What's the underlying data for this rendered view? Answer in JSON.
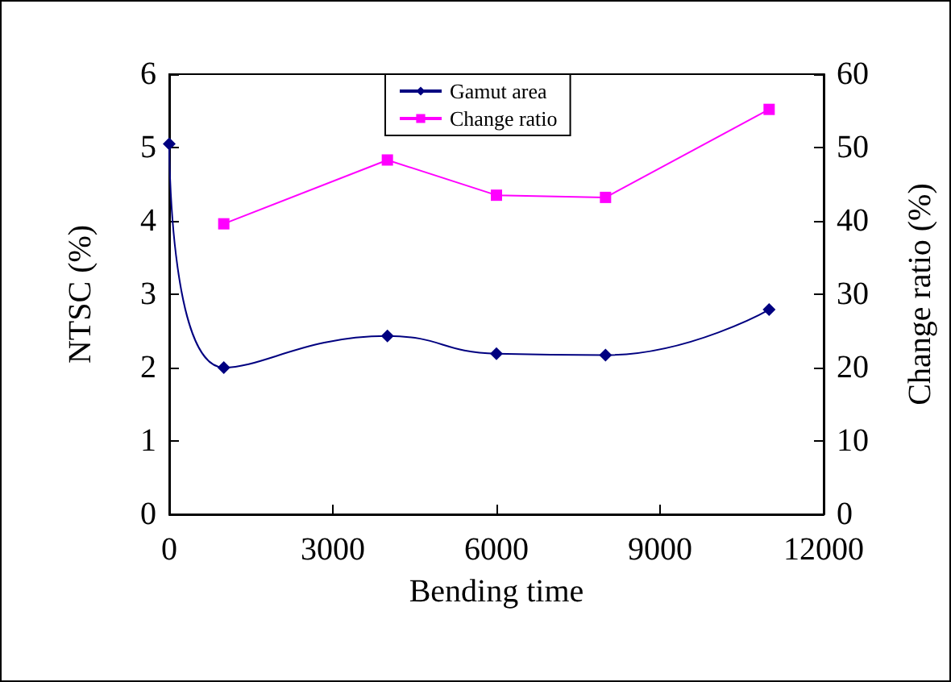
{
  "chart_data": {
    "type": "line",
    "xlabel": "Bending time",
    "ylabel": "NTSC (%)",
    "y2label": "Change ratio (%)",
    "xlim": [
      0,
      12000
    ],
    "xticks": [
      0,
      3000,
      6000,
      9000,
      12000
    ],
    "ylim": [
      0,
      6
    ],
    "yticks": [
      0,
      1,
      2,
      3,
      4,
      5,
      6
    ],
    "y2lim": [
      0,
      60
    ],
    "y2ticks": [
      0,
      10,
      20,
      30,
      40,
      50,
      60
    ],
    "series": [
      {
        "name": "Gamut area",
        "color": "#000080",
        "marker": "diamond",
        "x": [
          0,
          1000,
          4000,
          6000,
          8000,
          11000
        ],
        "values": [
          5.05,
          2.0,
          2.43,
          2.19,
          2.17,
          2.79
        ]
      },
      {
        "name": "Change ratio",
        "color": "#ff00ff",
        "marker": "square",
        "axis": "y2",
        "x": [
          1000,
          4000,
          6000,
          8000,
          11000
        ],
        "values": [
          39.6,
          48.3,
          43.5,
          43.2,
          55.2
        ]
      }
    ],
    "grid": false,
    "legend": "top right"
  }
}
